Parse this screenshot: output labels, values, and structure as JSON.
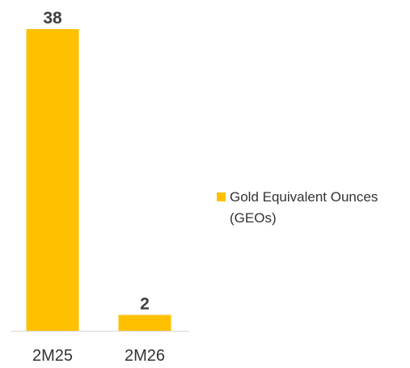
{
  "chart_data": {
    "type": "bar",
    "categories": [
      "2M25",
      "2M26"
    ],
    "series": [
      {
        "name": "Gold Equivalent Ounces (GEOs)",
        "values": [
          38,
          2
        ],
        "color": "#FFC000"
      }
    ],
    "data_labels": [
      "38",
      "2"
    ],
    "ylim": [
      0,
      38
    ],
    "grid": false,
    "legend_position": "right"
  }
}
